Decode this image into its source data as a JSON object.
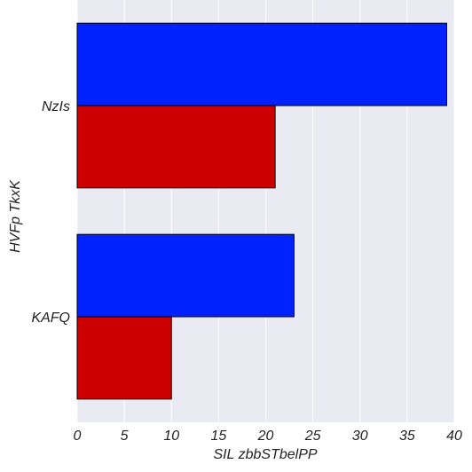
{
  "chart_data": {
    "type": "bar",
    "orientation": "horizontal",
    "categories": [
      "NzIs",
      "KAFQ"
    ],
    "series": [
      {
        "values": [
          39.2,
          23.0
        ],
        "color": "#0022ff"
      },
      {
        "values": [
          21.0,
          10.0
        ],
        "color": "#cc0000"
      }
    ],
    "xlabel": "SIL zbbSTbelPP",
    "ylabel": "HVFp TkxK",
    "xlim": [
      0,
      40
    ],
    "xticks": [
      0,
      5,
      10,
      15,
      20,
      25,
      30,
      35,
      40
    ],
    "grid": true,
    "background": "#eaeaf2"
  }
}
